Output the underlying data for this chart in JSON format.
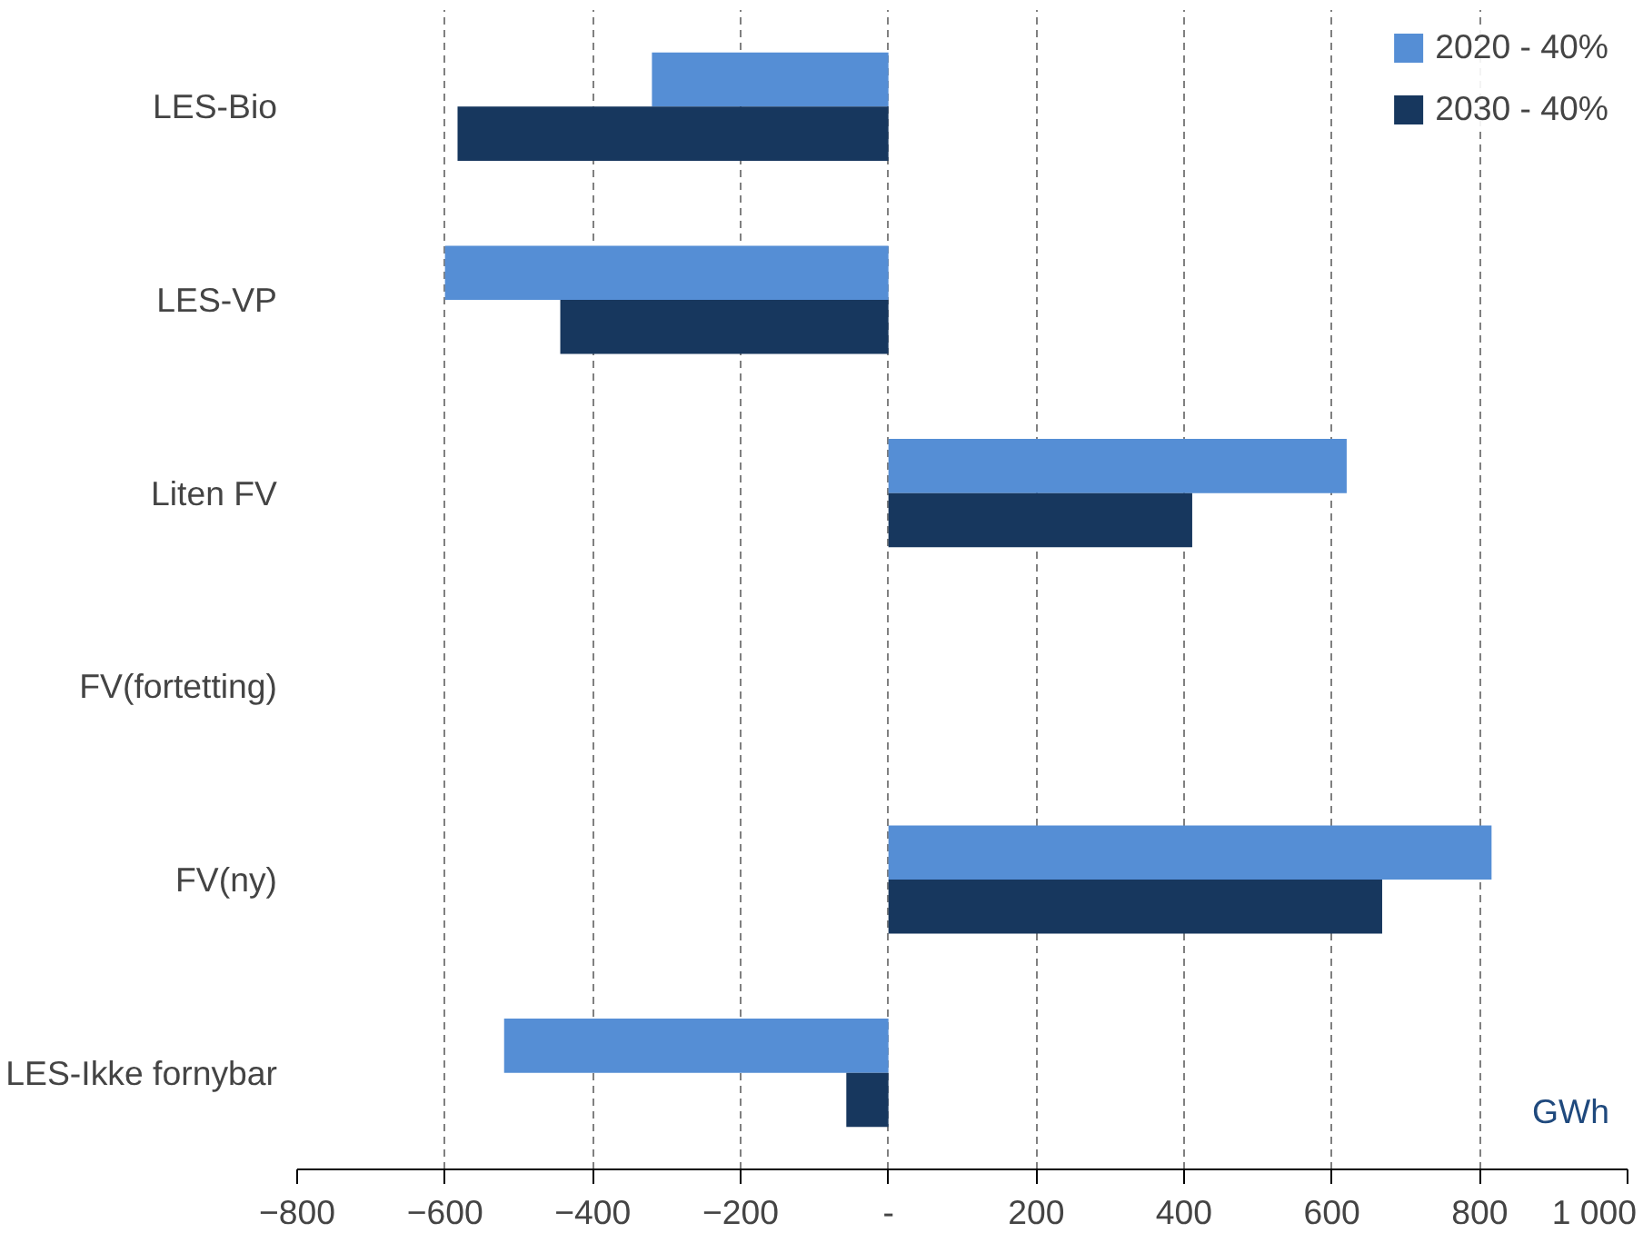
{
  "chart_data": {
    "type": "bar",
    "orientation": "horizontal",
    "categories": [
      "LES-Bio",
      "LES-VP",
      "Liten FV",
      "FV(fortetting)",
      "FV(ny)",
      "LES-Ikke fornybar"
    ],
    "series": [
      {
        "name": "2020 - 40%",
        "color": "#558ed5",
        "values": [
          -320,
          -600,
          620,
          0,
          816,
          -520
        ]
      },
      {
        "name": "2030 - 40%",
        "color": "#17375e",
        "values": [
          -583,
          -444,
          411,
          0,
          668,
          -57
        ]
      }
    ],
    "xlim": [
      -800,
      1000
    ],
    "xticks": [
      -800,
      -600,
      -400,
      -200,
      {
        "value": 0,
        "label": "-"
      },
      200,
      400,
      600,
      800,
      {
        "value": 1000,
        "label": "1 000"
      }
    ],
    "annotations": [
      "GWh"
    ],
    "grid": "x",
    "legend": "top right"
  }
}
